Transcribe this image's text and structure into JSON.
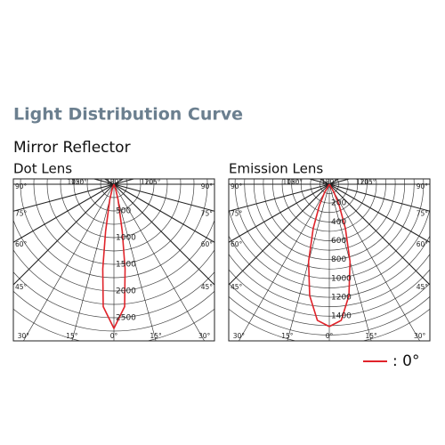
{
  "title": "Light Distribution Curve",
  "subtitle": "Mirror Reflector",
  "legend": [
    {
      "name": ": 0°",
      "color": "#e0232a"
    }
  ],
  "chart_data": [
    {
      "type": "polar",
      "title": "Dot Lens",
      "angle_ticks": [
        {
          "value": -180,
          "label": "180°"
        },
        {
          "value": -120,
          "label": "120°"
        },
        {
          "value": -105,
          "label": "105°"
        },
        {
          "value": -90,
          "label": "90°"
        },
        {
          "value": -75,
          "label": "75°"
        },
        {
          "value": -60,
          "label": "60°"
        },
        {
          "value": -45,
          "label": "45°"
        },
        {
          "value": -30,
          "label": "30°"
        },
        {
          "value": -15,
          "label": "15°"
        },
        {
          "value": 0,
          "label": "0°"
        },
        {
          "value": 15,
          "label": "15°"
        },
        {
          "value": 30,
          "label": "30°"
        },
        {
          "value": 45,
          "label": "45°"
        },
        {
          "value": 60,
          "label": "60°"
        },
        {
          "value": 75,
          "label": "75°"
        },
        {
          "value": 90,
          "label": "90°"
        },
        {
          "value": 105,
          "label": "105°"
        },
        {
          "value": 120,
          "label": "120°"
        }
      ],
      "rlim": [
        0,
        3000
      ],
      "rticks": [
        500,
        1000,
        1500,
        2000,
        2500
      ],
      "rgrid": [
        250,
        500,
        750,
        1000,
        1250,
        1500,
        1750,
        2000,
        2250,
        2500,
        2750,
        3000
      ],
      "series": [
        {
          "color": "#e0232a",
          "x": [
            -30,
            -20,
            -15,
            -10,
            -7.5,
            -5,
            0,
            5,
            7.5,
            10,
            15,
            20,
            30
          ],
          "values": [
            0,
            100,
            300,
            900,
            1600,
            2300,
            2700,
            2300,
            1600,
            900,
            300,
            100,
            0
          ]
        }
      ]
    },
    {
      "type": "polar",
      "title": "Emission Lens",
      "angle_ticks": [
        {
          "value": -180,
          "label": "180°"
        },
        {
          "value": -120,
          "label": "120°"
        },
        {
          "value": -105,
          "label": "105°"
        },
        {
          "value": -90,
          "label": "90°"
        },
        {
          "value": -75,
          "label": "75°"
        },
        {
          "value": -60,
          "label": "60°"
        },
        {
          "value": -45,
          "label": "45°"
        },
        {
          "value": -30,
          "label": "30°"
        },
        {
          "value": -15,
          "label": "15°"
        },
        {
          "value": 0,
          "label": "0°"
        },
        {
          "value": 15,
          "label": "15°"
        },
        {
          "value": 30,
          "label": "30°"
        },
        {
          "value": 45,
          "label": "45°"
        },
        {
          "value": 60,
          "label": "60°"
        },
        {
          "value": 75,
          "label": "75°"
        },
        {
          "value": 90,
          "label": "90°"
        },
        {
          "value": 105,
          "label": "105°"
        },
        {
          "value": 120,
          "label": "120°"
        }
      ],
      "rlim": [
        0,
        1700
      ],
      "rticks": [
        200,
        400,
        600,
        800,
        1000,
        1200,
        1400
      ],
      "rgrid": [
        100,
        200,
        300,
        400,
        500,
        600,
        700,
        800,
        900,
        1000,
        1100,
        1200,
        1300,
        1400,
        1500,
        1600,
        1700
      ],
      "series": [
        {
          "color": "#e0232a",
          "x": [
            -40,
            -30,
            -25,
            -20,
            -15,
            -10,
            -5,
            0,
            5,
            10,
            15,
            20,
            25,
            30,
            40
          ],
          "values": [
            0,
            100,
            250,
            500,
            850,
            1200,
            1450,
            1510,
            1450,
            1200,
            850,
            500,
            250,
            100,
            0
          ]
        }
      ]
    }
  ]
}
